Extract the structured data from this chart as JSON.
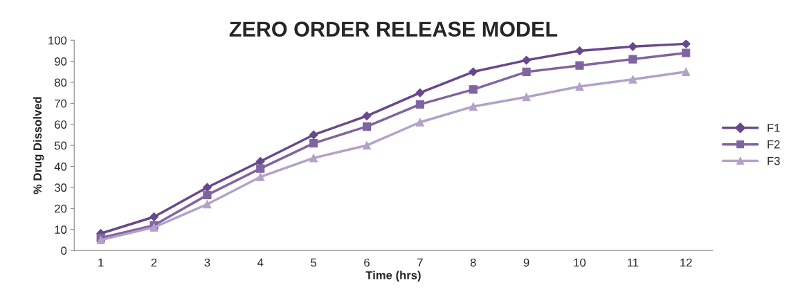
{
  "chart_data": {
    "type": "line",
    "title": "ZERO ORDER RELEASE MODEL",
    "xlabel": "Time (hrs)",
    "ylabel": "% Drug Dissolved",
    "categories": [
      "1",
      "2",
      "3",
      "4",
      "5",
      "6",
      "7",
      "8",
      "9",
      "10",
      "11",
      "12"
    ],
    "series": [
      {
        "name": "F1",
        "color": "#68488c",
        "marker": "diamond",
        "values": [
          8.1,
          16,
          30,
          42.4,
          55,
          64,
          75,
          85,
          90.5,
          95,
          97,
          98.3
        ]
      },
      {
        "name": "F2",
        "color": "#8064a2",
        "marker": "square",
        "values": [
          6,
          12,
          26.4,
          39,
          51,
          59,
          69.5,
          76.6,
          85,
          88,
          91,
          94
        ]
      },
      {
        "name": "F3",
        "color": "#b3a2c7",
        "marker": "triangle",
        "values": [
          5,
          11,
          22,
          35,
          44,
          50,
          61,
          68.5,
          73,
          78,
          81.4,
          85
        ]
      }
    ],
    "ylim": [
      0,
      100
    ],
    "yticks": [
      0,
      10,
      20,
      30,
      40,
      50,
      60,
      70,
      80,
      90,
      100
    ],
    "grid": false,
    "legend": "right",
    "line_style": "solid"
  }
}
